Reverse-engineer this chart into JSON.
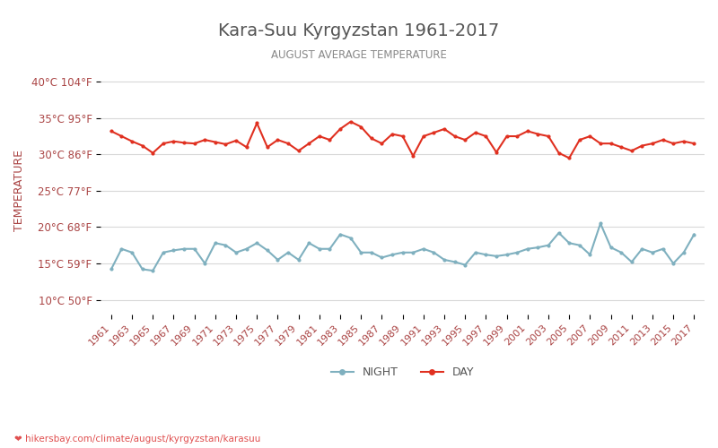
{
  "title": "Kara-Suu Kyrgyzstan 1961-2017",
  "subtitle": "AUGUST AVERAGE TEMPERATURE",
  "ylabel": "TEMPERATURE",
  "xlabel": "",
  "years": [
    1961,
    1962,
    1963,
    1964,
    1965,
    1966,
    1967,
    1968,
    1969,
    1970,
    1971,
    1972,
    1973,
    1974,
    1975,
    1976,
    1977,
    1978,
    1979,
    1980,
    1981,
    1982,
    1983,
    1984,
    1985,
    1986,
    1987,
    1988,
    1989,
    1990,
    1991,
    1992,
    1993,
    1994,
    1995,
    1996,
    1997,
    1998,
    1999,
    2000,
    2001,
    2002,
    2003,
    2004,
    2005,
    2006,
    2007,
    2008,
    2009,
    2010,
    2011,
    2012,
    2013,
    2014,
    2015,
    2016,
    2017
  ],
  "day_temps": [
    33.2,
    32.5,
    31.8,
    31.2,
    30.2,
    31.5,
    31.8,
    31.6,
    31.5,
    32.0,
    31.7,
    31.4,
    31.9,
    31.0,
    34.3,
    31.0,
    32.0,
    31.5,
    30.5,
    31.5,
    32.5,
    32.0,
    33.5,
    34.5,
    33.8,
    32.2,
    31.5,
    32.8,
    32.5,
    29.8,
    32.5,
    33.0,
    33.5,
    32.5,
    32.0,
    33.0,
    32.5,
    30.3,
    32.5,
    32.5,
    33.2,
    32.8,
    32.5,
    30.2,
    29.5,
    32.0,
    32.5,
    31.5,
    31.5,
    31.0,
    30.5,
    31.2,
    31.5,
    32.0,
    31.5,
    31.8,
    31.5
  ],
  "night_temps": [
    14.2,
    17.0,
    16.5,
    14.2,
    14.0,
    16.5,
    16.8,
    17.0,
    17.0,
    15.0,
    17.8,
    17.5,
    16.5,
    17.0,
    17.8,
    16.8,
    15.5,
    16.5,
    15.5,
    17.8,
    17.0,
    17.0,
    19.0,
    18.5,
    16.5,
    16.5,
    15.8,
    16.2,
    16.5,
    16.5,
    17.0,
    16.5,
    15.5,
    15.2,
    14.8,
    16.5,
    16.2,
    16.0,
    16.2,
    16.5,
    17.0,
    17.2,
    17.5,
    19.2,
    17.8,
    17.5,
    16.2,
    20.5,
    17.2,
    16.5,
    15.2,
    17.0,
    16.5,
    17.0,
    15.0,
    16.5,
    19.0
  ],
  "day_color": "#e03020",
  "night_color": "#7fb0bf",
  "bg_color": "#ffffff",
  "grid_color": "#d8d8d8",
  "yticks_celsius": [
    10,
    15,
    20,
    25,
    30,
    35,
    40
  ],
  "yticks_labels": [
    "10°C 50°F",
    "15°C 59°F",
    "20°C 68°F",
    "25°C 77°F",
    "30°C 86°F",
    "35°C 95°F",
    "40°C 104°F"
  ],
  "ylim": [
    8,
    42
  ],
  "legend_night": "NIGHT",
  "legend_day": "DAY",
  "footer_text": "hikersbay.com/climate/august/kyrgyzstan/karasuu",
  "title_color": "#555555",
  "subtitle_color": "#888888",
  "ylabel_color": "#aa4444",
  "tick_label_color": "#aa4444",
  "marker_size": 3,
  "line_width": 1.5
}
